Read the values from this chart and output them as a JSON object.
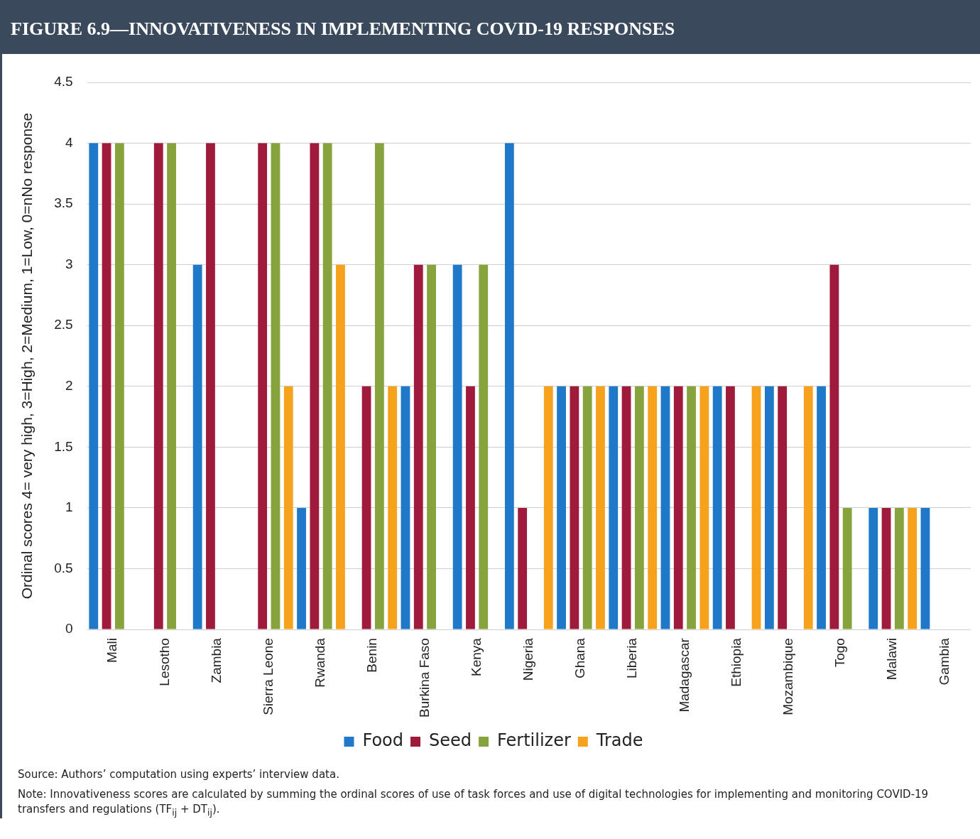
{
  "chart_data": {
    "type": "bar",
    "title": "FIGURE 6.9—INNOVATIVENESS IN IMPLEMENTING COVID-19 RESPONSES",
    "ylabel": "Ordinal scores 4= very high, 3=High, 2=Medium, 1=Low, 0=nNo response",
    "categories": [
      "Mali",
      "Lesotho",
      "Zambia",
      "Sierra Leone",
      "Rwanda",
      "Benin",
      "Burkina Faso",
      "Kenya",
      "Nigeria",
      "Ghana",
      "Liberia",
      "Madagascar",
      "Ethiopia",
      "Mozambique",
      "Togo",
      "Malawi",
      "Gambia"
    ],
    "series": [
      {
        "name": "Food",
        "color": "#1f78c8",
        "values": [
          4,
          0,
          3,
          0,
          1,
          0,
          2,
          3,
          4,
          2,
          2,
          2,
          2,
          2,
          2,
          1,
          1
        ]
      },
      {
        "name": "Seed",
        "color": "#a01a3c",
        "values": [
          4,
          4,
          4,
          4,
          4,
          2,
          3,
          2,
          1,
          2,
          2,
          2,
          2,
          2,
          3,
          1,
          0
        ]
      },
      {
        "name": "Fertilizer",
        "color": "#86a33e",
        "values": [
          4,
          4,
          0,
          4,
          4,
          4,
          3,
          3,
          0,
          2,
          2,
          2,
          0,
          0,
          1,
          1,
          0
        ]
      },
      {
        "name": "Trade",
        "color": "#f6a21c",
        "values": [
          0,
          0,
          0,
          2,
          3,
          2,
          0,
          0,
          2,
          2,
          2,
          2,
          2,
          2,
          0,
          1,
          0
        ]
      }
    ],
    "ylim": [
      0,
      4.5
    ],
    "yticks": [
      0,
      0.5,
      1,
      1.5,
      2,
      2.5,
      3,
      3.5,
      4,
      4.5
    ],
    "grid": "y",
    "legend": "bottom",
    "annotations": [
      "Source: Authors’ computation using experts’ interview data.",
      "Note: Innovativeness scores are calculated by summing the ordinal scores of use of task forces and use of digital technologies for implementing and monitoring COVID-19 transfers and regulations (TF$_{ij}$ + DT$_{ij}$)."
    ]
  }
}
